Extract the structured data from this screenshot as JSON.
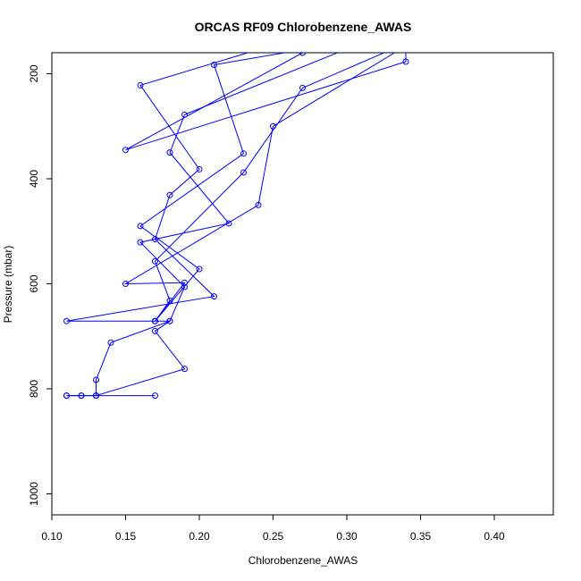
{
  "chart_data": {
    "type": "line",
    "title": "ORCAS RF09 Chlorobenzene_AWAS",
    "xlabel": "Chlorobenzene_AWAS",
    "ylabel": "Pressure (mbar)",
    "xlim": [
      0.1,
      0.44
    ],
    "ylim": [
      1040,
      160
    ],
    "y_axis_inverted": true,
    "grid": false,
    "legend": "none",
    "xticks": [
      "0.10",
      "0.15",
      "0.20",
      "0.25",
      "0.30",
      "0.35",
      "0.40"
    ],
    "xtick_values": [
      0.1,
      0.15,
      0.2,
      0.25,
      0.3,
      0.35,
      0.4
    ],
    "yticks": [
      "200",
      "400",
      "600",
      "800",
      "1000"
    ],
    "ytick_values": [
      200,
      400,
      600,
      800,
      1000
    ],
    "series": [
      {
        "color": "#0000ff",
        "marker": "open-circle",
        "points": [
          [
            0.17,
            813
          ],
          [
            0.11,
            813
          ],
          [
            0.12,
            813
          ],
          [
            0.13,
            813
          ],
          [
            0.19,
            762
          ],
          [
            0.17,
            690
          ],
          [
            0.18,
            671
          ],
          [
            0.17,
            671
          ],
          [
            0.11,
            671
          ],
          [
            0.21,
            624
          ],
          [
            0.17,
            515
          ],
          [
            0.18,
            431
          ],
          [
            0.2,
            382
          ],
          [
            0.16,
            222
          ],
          [
            0.28,
            120
          ],
          [
            0.34,
            120
          ],
          [
            0.34,
            177
          ],
          [
            0.15,
            345
          ],
          [
            0.27,
            160
          ]
        ]
      },
      {
        "color": "#0000ff",
        "marker": "open-circle",
        "points": [
          [
            0.13,
            813
          ],
          [
            0.11,
            813
          ],
          [
            0.12,
            813
          ],
          [
            0.13,
            813
          ],
          [
            0.13,
            783
          ],
          [
            0.14,
            712
          ],
          [
            0.18,
            671
          ],
          [
            0.19,
            606
          ],
          [
            0.16,
            521
          ],
          [
            0.22,
            485
          ],
          [
            0.18,
            350
          ],
          [
            0.19,
            278
          ],
          [
            0.32,
            130
          ],
          [
            0.21,
            183
          ],
          [
            0.23,
            352
          ],
          [
            0.16,
            490
          ],
          [
            0.2,
            572
          ],
          [
            0.17,
            671
          ],
          [
            0.18,
            632
          ],
          [
            0.17,
            557
          ],
          [
            0.23,
            388
          ],
          [
            0.27,
            227
          ],
          [
            0.35,
            130
          ],
          [
            0.25,
            300
          ],
          [
            0.24,
            450
          ],
          [
            0.15,
            600
          ],
          [
            0.19,
            598
          ],
          [
            0.17,
            671
          ]
        ]
      }
    ]
  }
}
